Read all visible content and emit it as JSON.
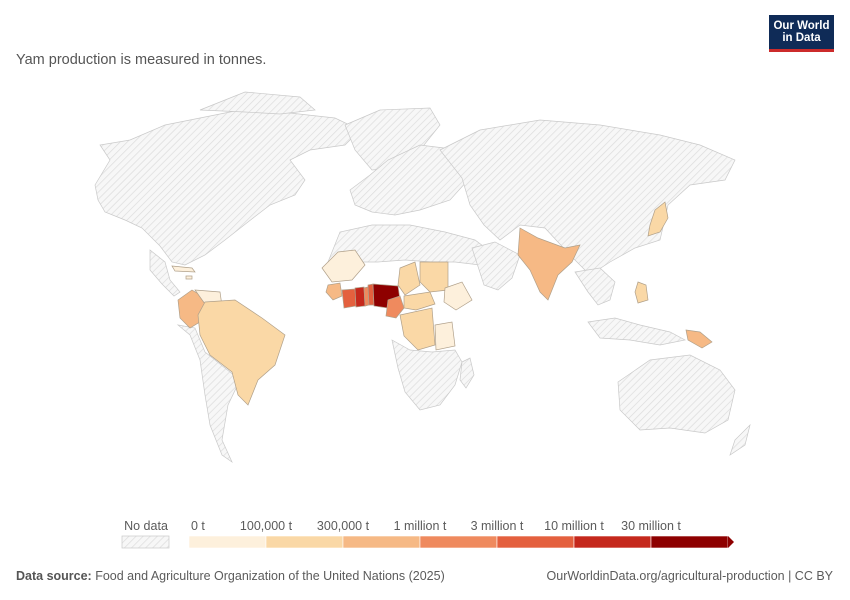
{
  "subtitle": "Yam production is measured in tonnes.",
  "logo": {
    "line1": "Our World",
    "line2": "in Data"
  },
  "legend": {
    "no_data_label": "No data",
    "bins": [
      {
        "label": "0 t",
        "color": "#fdf0dc"
      },
      {
        "label": "100,000 t",
        "color": "#fad8a6"
      },
      {
        "label": "300,000 t",
        "color": "#f6b985"
      },
      {
        "label": "1 million t",
        "color": "#ef8a5e"
      },
      {
        "label": "3 million t",
        "color": "#e4603e"
      },
      {
        "label": "10 million t",
        "color": "#c5281c"
      },
      {
        "label": "30 million t",
        "color": "#8e0000"
      }
    ]
  },
  "footer": {
    "source_label": "Data source:",
    "source_text": "Food and Agriculture Organization of the United Nations (2025)",
    "url": "OurWorldinData.org/agricultural-production | CC BY"
  },
  "map_data": {
    "no_data_color": "#f2f2f2",
    "countries": [
      {
        "name": "Nigeria",
        "bin": 6
      },
      {
        "name": "Ghana",
        "bin": 5
      },
      {
        "name": "Côte d'Ivoire",
        "bin": 4
      },
      {
        "name": "Benin",
        "bin": 4
      },
      {
        "name": "Togo",
        "bin": 3
      },
      {
        "name": "Cameroon",
        "bin": 3
      },
      {
        "name": "Guinea",
        "bin": 2
      },
      {
        "name": "Colombia",
        "bin": 2
      },
      {
        "name": "India",
        "bin": 2
      },
      {
        "name": "Papua New Guinea",
        "bin": 2
      },
      {
        "name": "Brazil",
        "bin": 1
      },
      {
        "name": "Sudan",
        "bin": 1
      },
      {
        "name": "Central African Republic",
        "bin": 1
      },
      {
        "name": "DR Congo",
        "bin": 1
      },
      {
        "name": "Chad",
        "bin": 1
      },
      {
        "name": "Japan",
        "bin": 1
      },
      {
        "name": "Philippines",
        "bin": 1
      },
      {
        "name": "Mali",
        "bin": 0
      },
      {
        "name": "Venezuela",
        "bin": 0
      },
      {
        "name": "Ethiopia",
        "bin": 0
      },
      {
        "name": "Tanzania",
        "bin": 0
      },
      {
        "name": "Cuba",
        "bin": 0
      },
      {
        "name": "Jamaica",
        "bin": 0
      }
    ]
  }
}
